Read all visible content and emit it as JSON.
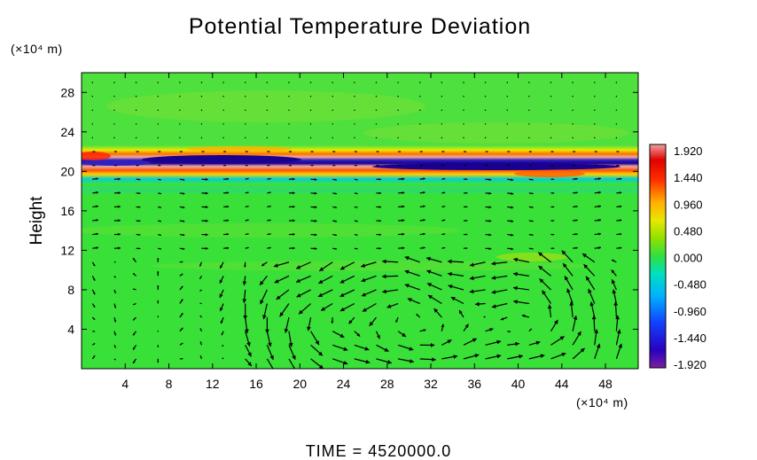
{
  "chart_data": {
    "type": "heatmap",
    "title": "Potential Temperature Deviation",
    "ylabel": "Height",
    "x_unit": "(×10⁴ m)",
    "y_unit": "(×10⁴ m)",
    "x_ticks": [
      4,
      8,
      12,
      16,
      20,
      24,
      28,
      32,
      36,
      40,
      44,
      48
    ],
    "y_ticks": [
      4,
      8,
      12,
      16,
      20,
      24,
      28
    ],
    "xlim": [
      0,
      51
    ],
    "ylim": [
      0,
      30
    ],
    "colorbar": {
      "ticks": [
        "1.920",
        "1.440",
        "0.960",
        "0.480",
        "0.000",
        "-0.480",
        "-0.960",
        "-1.440",
        "-1.920"
      ],
      "range": [
        -1.92,
        1.92
      ]
    },
    "time_label": "TIME = 4520000.0",
    "field_features": [
      {
        "kind": "background",
        "value": 0.1
      },
      {
        "kind": "layer",
        "y": 21.0,
        "value": -1.9,
        "description": "cold anomaly band along tropopause"
      },
      {
        "kind": "layer",
        "y": 20.0,
        "value": 1.8,
        "description": "warm anomaly band"
      },
      {
        "kind": "layer",
        "y": 22.0,
        "value": 1.2,
        "description": "upper warm fringe"
      }
    ],
    "wind_vectors": "overlay arrows showing circulation cells below 10×10⁴ m near x=22–34 and x=36–46"
  }
}
